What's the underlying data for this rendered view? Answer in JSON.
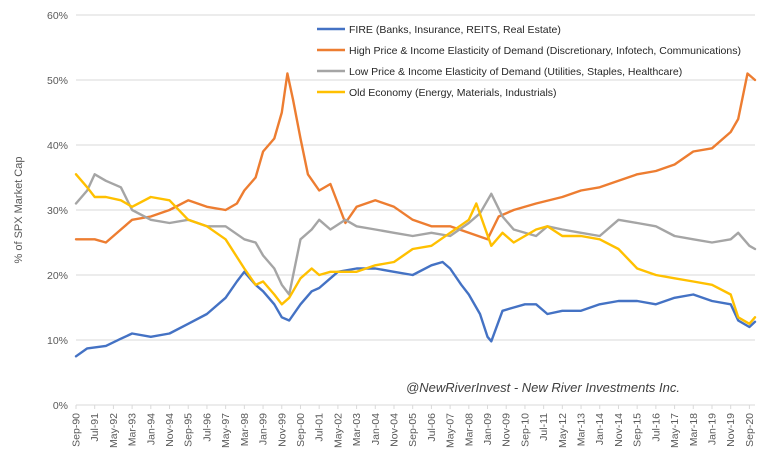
{
  "chart_data": {
    "type": "line",
    "title": "",
    "ylabel": "% of SPX Market Cap",
    "xlabel": "",
    "ylim": [
      0,
      60
    ],
    "yticks": [
      "0%",
      "10%",
      "20%",
      "30%",
      "40%",
      "50%",
      "60%"
    ],
    "ytick_values": [
      0,
      10,
      20,
      30,
      40,
      50,
      60
    ],
    "grid": "horizontal",
    "legend_position": "top-center",
    "x_start": "Sep-90",
    "x_end": "Dec-20",
    "xtick_labels": [
      "Sep-90",
      "Jul-91",
      "May-92",
      "Mar-93",
      "Jan-94",
      "Nov-94",
      "Sep-95",
      "Jul-96",
      "May-97",
      "Mar-98",
      "Jan-99",
      "Nov-99",
      "Sep-00",
      "Jul-01",
      "May-02",
      "Mar-03",
      "Jan-04",
      "Nov-04",
      "Sep-05",
      "Jul-06",
      "May-07",
      "Mar-08",
      "Jan-09",
      "Nov-09",
      "Sep-10",
      "Jul-11",
      "May-12",
      "Mar-13",
      "Jan-14",
      "Nov-14",
      "Sep-15",
      "Jul-16",
      "May-17",
      "Mar-18",
      "Jan-19",
      "Nov-19",
      "Sep-20"
    ],
    "annotation": "@NewRiverInvest - New River Investments Inc.",
    "series": [
      {
        "name": "FIRE (Banks, Insurance, REITS, Real Estate)",
        "color": "#4472C4",
        "points": [
          [
            "1990-09",
            7.5
          ],
          [
            "1991-03",
            8.7
          ],
          [
            "1992-01",
            9.1
          ],
          [
            "1992-09",
            10.2
          ],
          [
            "1993-03",
            11.0
          ],
          [
            "1994-01",
            10.5
          ],
          [
            "1994-11",
            11.0
          ],
          [
            "1995-09",
            12.5
          ],
          [
            "1996-07",
            14.0
          ],
          [
            "1997-05",
            16.5
          ],
          [
            "1997-11",
            19.0
          ],
          [
            "1998-03",
            20.5
          ],
          [
            "1998-09",
            18.5
          ],
          [
            "1999-01",
            17.5
          ],
          [
            "1999-07",
            15.5
          ],
          [
            "1999-11",
            13.5
          ],
          [
            "2000-03",
            13.0
          ],
          [
            "2000-09",
            15.5
          ],
          [
            "2001-03",
            17.5
          ],
          [
            "2001-07",
            18.0
          ],
          [
            "2002-01",
            19.5
          ],
          [
            "2002-05",
            20.5
          ],
          [
            "2003-03",
            21.0
          ],
          [
            "2004-01",
            21.0
          ],
          [
            "2004-11",
            20.5
          ],
          [
            "2005-09",
            20.0
          ],
          [
            "2006-07",
            21.5
          ],
          [
            "2007-01",
            22.0
          ],
          [
            "2007-05",
            21.0
          ],
          [
            "2007-11",
            18.5
          ],
          [
            "2008-03",
            17.0
          ],
          [
            "2008-09",
            14.0
          ],
          [
            "2009-01",
            10.5
          ],
          [
            "2009-03",
            9.8
          ],
          [
            "2009-09",
            14.5
          ],
          [
            "2010-03",
            15.0
          ],
          [
            "2010-09",
            15.5
          ],
          [
            "2011-03",
            15.5
          ],
          [
            "2011-09",
            14.0
          ],
          [
            "2012-05",
            14.5
          ],
          [
            "2013-03",
            14.5
          ],
          [
            "2014-01",
            15.5
          ],
          [
            "2014-11",
            16.0
          ],
          [
            "2015-09",
            16.0
          ],
          [
            "2016-07",
            15.5
          ],
          [
            "2017-05",
            16.5
          ],
          [
            "2018-03",
            17.0
          ],
          [
            "2019-01",
            16.0
          ],
          [
            "2019-11",
            15.5
          ],
          [
            "2020-03",
            13.0
          ],
          [
            "2020-09",
            12.0
          ],
          [
            "2020-12",
            12.8
          ]
        ]
      },
      {
        "name": "High Price & Income Elasticity of Demand (Discretionary, Infotech, Communications)",
        "color": "#ED7D31",
        "points": [
          [
            "1990-09",
            25.5
          ],
          [
            "1991-07",
            25.5
          ],
          [
            "1992-01",
            25.0
          ],
          [
            "1992-09",
            27.0
          ],
          [
            "1993-03",
            28.5
          ],
          [
            "1994-01",
            29.0
          ],
          [
            "1994-11",
            30.0
          ],
          [
            "1995-09",
            31.5
          ],
          [
            "1996-07",
            30.5
          ],
          [
            "1997-05",
            30.0
          ],
          [
            "1997-11",
            31.0
          ],
          [
            "1998-03",
            33.0
          ],
          [
            "1998-09",
            35.0
          ],
          [
            "1999-01",
            39.0
          ],
          [
            "1999-07",
            41.0
          ],
          [
            "1999-11",
            45.0
          ],
          [
            "2000-02",
            51.0
          ],
          [
            "2000-05",
            47.0
          ],
          [
            "2000-09",
            41.0
          ],
          [
            "2001-01",
            35.5
          ],
          [
            "2001-07",
            33.0
          ],
          [
            "2002-01",
            34.0
          ],
          [
            "2002-09",
            28.0
          ],
          [
            "2003-03",
            30.5
          ],
          [
            "2004-01",
            31.5
          ],
          [
            "2004-11",
            30.5
          ],
          [
            "2005-09",
            28.5
          ],
          [
            "2006-07",
            27.5
          ],
          [
            "2007-05",
            27.5
          ],
          [
            "2008-03",
            26.5
          ],
          [
            "2009-01",
            25.5
          ],
          [
            "2009-07",
            29.0
          ],
          [
            "2010-03",
            30.0
          ],
          [
            "2011-03",
            31.0
          ],
          [
            "2012-05",
            32.0
          ],
          [
            "2013-03",
            33.0
          ],
          [
            "2014-01",
            33.5
          ],
          [
            "2014-11",
            34.5
          ],
          [
            "2015-09",
            35.5
          ],
          [
            "2016-07",
            36.0
          ],
          [
            "2017-05",
            37.0
          ],
          [
            "2018-03",
            39.0
          ],
          [
            "2019-01",
            39.5
          ],
          [
            "2019-11",
            42.0
          ],
          [
            "2020-03",
            44.0
          ],
          [
            "2020-08",
            51.0
          ],
          [
            "2020-12",
            50.0
          ]
        ]
      },
      {
        "name": "Low Price & Income Elasticity of Demand (Utilities, Staples, Healthcare)",
        "color": "#A5A5A5",
        "points": [
          [
            "1990-09",
            31.0
          ],
          [
            "1991-03",
            33.0
          ],
          [
            "1991-07",
            35.5
          ],
          [
            "1992-01",
            34.5
          ],
          [
            "1992-09",
            33.5
          ],
          [
            "1993-03",
            30.0
          ],
          [
            "1994-01",
            28.5
          ],
          [
            "1994-11",
            28.0
          ],
          [
            "1995-09",
            28.5
          ],
          [
            "1996-07",
            27.5
          ],
          [
            "1997-05",
            27.5
          ],
          [
            "1998-03",
            25.5
          ],
          [
            "1998-09",
            25.0
          ],
          [
            "1999-01",
            23.0
          ],
          [
            "1999-07",
            21.0
          ],
          [
            "1999-11",
            18.5
          ],
          [
            "2000-03",
            17.0
          ],
          [
            "2000-09",
            25.5
          ],
          [
            "2001-03",
            27.0
          ],
          [
            "2001-07",
            28.5
          ],
          [
            "2002-01",
            27.0
          ],
          [
            "2002-09",
            28.5
          ],
          [
            "2003-03",
            27.5
          ],
          [
            "2004-01",
            27.0
          ],
          [
            "2004-11",
            26.5
          ],
          [
            "2005-09",
            26.0
          ],
          [
            "2006-07",
            26.5
          ],
          [
            "2007-05",
            26.0
          ],
          [
            "2008-03",
            28.0
          ],
          [
            "2008-09",
            29.5
          ],
          [
            "2009-03",
            32.5
          ],
          [
            "2009-09",
            29.0
          ],
          [
            "2010-03",
            27.0
          ],
          [
            "2011-03",
            26.0
          ],
          [
            "2011-09",
            27.5
          ],
          [
            "2012-05",
            27.0
          ],
          [
            "2013-03",
            26.5
          ],
          [
            "2014-01",
            26.0
          ],
          [
            "2014-11",
            28.5
          ],
          [
            "2015-09",
            28.0
          ],
          [
            "2016-07",
            27.5
          ],
          [
            "2017-05",
            26.0
          ],
          [
            "2018-03",
            25.5
          ],
          [
            "2019-01",
            25.0
          ],
          [
            "2019-11",
            25.5
          ],
          [
            "2020-03",
            26.5
          ],
          [
            "2020-09",
            24.5
          ],
          [
            "2020-12",
            24.0
          ]
        ]
      },
      {
        "name": "Old Economy (Energy, Materials, Industrials)",
        "color": "#FFC000",
        "points": [
          [
            "1990-09",
            35.5
          ],
          [
            "1991-03",
            33.5
          ],
          [
            "1991-07",
            32.0
          ],
          [
            "1992-01",
            32.0
          ],
          [
            "1992-09",
            31.5
          ],
          [
            "1993-03",
            30.5
          ],
          [
            "1994-01",
            32.0
          ],
          [
            "1994-11",
            31.5
          ],
          [
            "1995-09",
            28.5
          ],
          [
            "1996-07",
            27.5
          ],
          [
            "1997-05",
            25.5
          ],
          [
            "1998-03",
            21.0
          ],
          [
            "1998-09",
            18.5
          ],
          [
            "1999-01",
            19.0
          ],
          [
            "1999-07",
            17.0
          ],
          [
            "1999-11",
            15.5
          ],
          [
            "2000-03",
            16.5
          ],
          [
            "2000-09",
            19.5
          ],
          [
            "2001-03",
            21.0
          ],
          [
            "2001-07",
            20.0
          ],
          [
            "2002-01",
            20.5
          ],
          [
            "2002-09",
            20.5
          ],
          [
            "2003-03",
            20.5
          ],
          [
            "2004-01",
            21.5
          ],
          [
            "2004-11",
            22.0
          ],
          [
            "2005-09",
            24.0
          ],
          [
            "2006-07",
            24.5
          ],
          [
            "2007-05",
            26.5
          ],
          [
            "2008-03",
            28.5
          ],
          [
            "2008-07",
            31.0
          ],
          [
            "2009-03",
            24.5
          ],
          [
            "2009-09",
            26.5
          ],
          [
            "2010-03",
            25.0
          ],
          [
            "2011-03",
            27.0
          ],
          [
            "2011-09",
            27.5
          ],
          [
            "2012-05",
            26.0
          ],
          [
            "2013-03",
            26.0
          ],
          [
            "2014-01",
            25.5
          ],
          [
            "2014-11",
            24.0
          ],
          [
            "2015-09",
            21.0
          ],
          [
            "2016-07",
            20.0
          ],
          [
            "2017-05",
            19.5
          ],
          [
            "2018-03",
            19.0
          ],
          [
            "2019-01",
            18.5
          ],
          [
            "2019-11",
            17.0
          ],
          [
            "2020-03",
            13.5
          ],
          [
            "2020-09",
            12.5
          ],
          [
            "2020-12",
            13.5
          ]
        ]
      }
    ]
  }
}
